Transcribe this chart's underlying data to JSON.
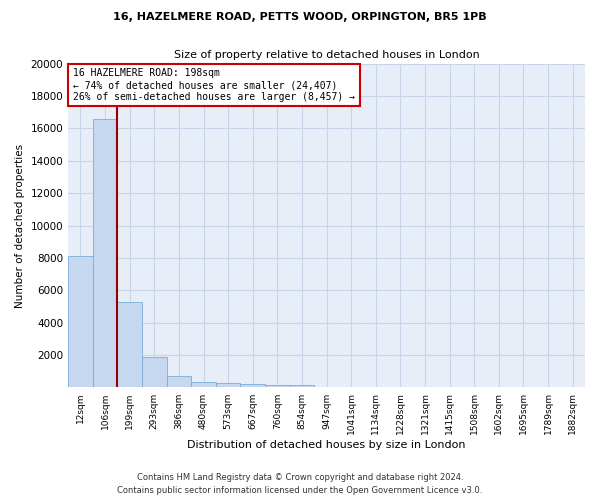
{
  "title1": "16, HAZELMERE ROAD, PETTS WOOD, ORPINGTON, BR5 1PB",
  "title2": "Size of property relative to detached houses in London",
  "xlabel": "Distribution of detached houses by size in London",
  "ylabel": "Number of detached properties",
  "bar_labels": [
    "12sqm",
    "106sqm",
    "199sqm",
    "293sqm",
    "386sqm",
    "480sqm",
    "573sqm",
    "667sqm",
    "760sqm",
    "854sqm",
    "947sqm",
    "1041sqm",
    "1134sqm",
    "1228sqm",
    "1321sqm",
    "1415sqm",
    "1508sqm",
    "1602sqm",
    "1695sqm",
    "1789sqm",
    "1882sqm"
  ],
  "bar_values": [
    8100,
    16600,
    5300,
    1850,
    700,
    350,
    280,
    220,
    180,
    150,
    0,
    0,
    0,
    0,
    0,
    0,
    0,
    0,
    0,
    0,
    0
  ],
  "bar_color": "#c5d8ef",
  "bar_edge_color": "#7aadd4",
  "marker_line_color": "#990000",
  "annotation_text": "16 HAZELMERE ROAD: 198sqm\n← 74% of detached houses are smaller (24,407)\n26% of semi-detached houses are larger (8,457) →",
  "annotation_box_color": "#ffffff",
  "annotation_box_edge": "#cc0000",
  "footnote": "Contains HM Land Registry data © Crown copyright and database right 2024.\nContains public sector information licensed under the Open Government Licence v3.0.",
  "ylim": [
    0,
    20000
  ],
  "yticks": [
    0,
    2000,
    4000,
    6000,
    8000,
    10000,
    12000,
    14000,
    16000,
    18000,
    20000
  ],
  "grid_color": "#c8d4e8",
  "bg_color": "#e8eef8"
}
